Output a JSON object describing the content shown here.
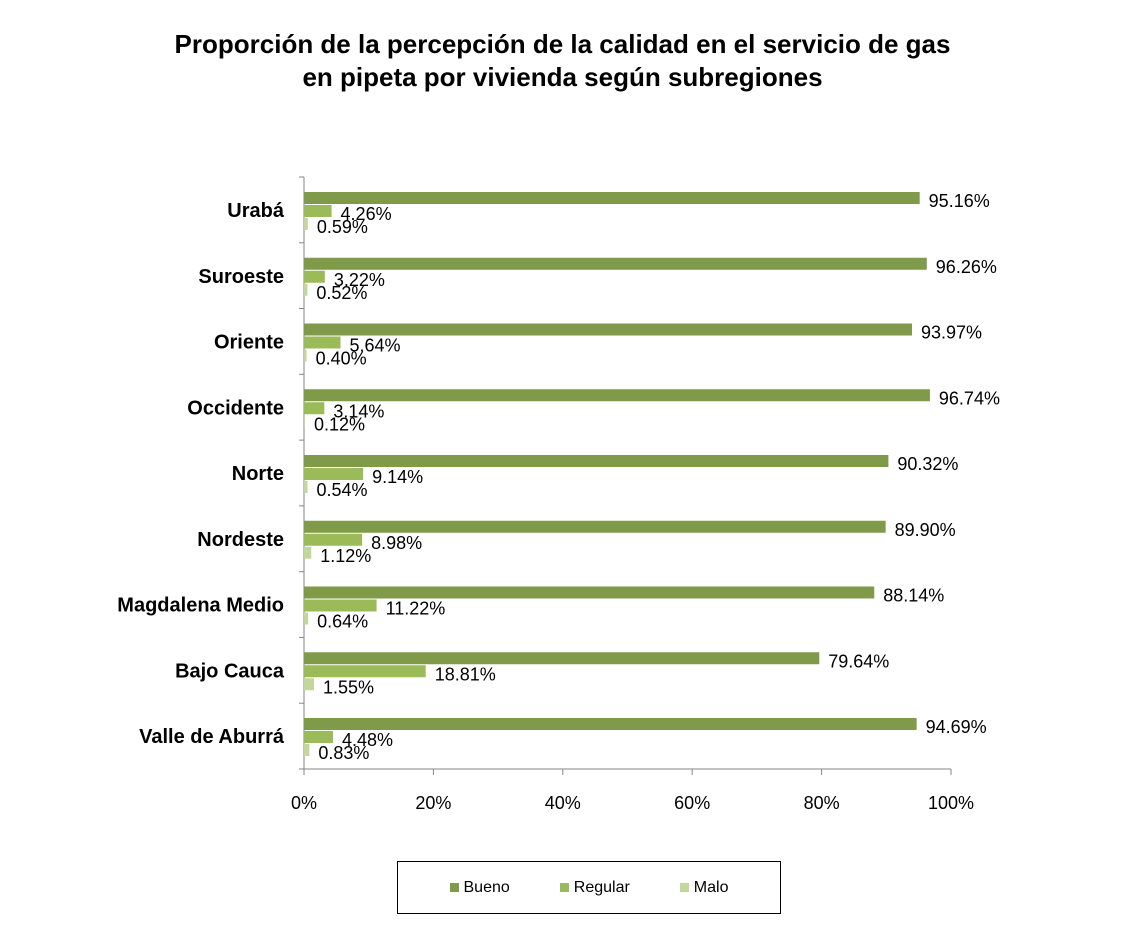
{
  "chart_data": {
    "type": "bar",
    "orientation": "horizontal",
    "title_lines": [
      "Proporción de la percepción de la calidad en el servicio de gas",
      "en pipeta por vivienda según subregiones"
    ],
    "categories": [
      "Urabá",
      "Suroeste",
      "Oriente",
      "Occidente",
      "Norte",
      "Nordeste",
      "Magdalena Medio",
      "Bajo Cauca",
      "Valle de Aburrá"
    ],
    "series": [
      {
        "name": "Bueno",
        "color": "#7f9a48",
        "values": [
          95.16,
          96.26,
          93.97,
          96.74,
          90.32,
          89.9,
          88.14,
          79.64,
          94.69
        ],
        "labels": [
          "95.16%",
          "96.26%",
          "93.97%",
          "96.74%",
          "90.32%",
          "89.90%",
          "88.14%",
          "79.64%",
          "94.69%"
        ]
      },
      {
        "name": "Regular",
        "color": "#9bbb59",
        "values": [
          4.26,
          3.22,
          5.64,
          3.14,
          9.14,
          8.98,
          11.22,
          18.81,
          4.48
        ],
        "labels": [
          "4.26%",
          "3.22%",
          "5.64%",
          "3.14%",
          "9.14%",
          "8.98%",
          "11.22%",
          "18.81%",
          "4.48%"
        ]
      },
      {
        "name": "Malo",
        "color": "#c3d69b",
        "values": [
          0.59,
          0.52,
          0.4,
          0.12,
          0.54,
          1.12,
          0.64,
          1.55,
          0.83
        ],
        "labels": [
          "0.59%",
          "0.52%",
          "0.40%",
          "0.12%",
          "0.54%",
          "1.12%",
          "0.64%",
          "1.55%",
          "0.83%"
        ]
      }
    ],
    "xlim": [
      0,
      100
    ],
    "xticks": [
      0,
      20,
      40,
      60,
      80,
      100
    ],
    "xtick_labels": [
      "0%",
      "20%",
      "40%",
      "60%",
      "80%",
      "100%"
    ],
    "grid": false,
    "legend_position": "bottom"
  }
}
